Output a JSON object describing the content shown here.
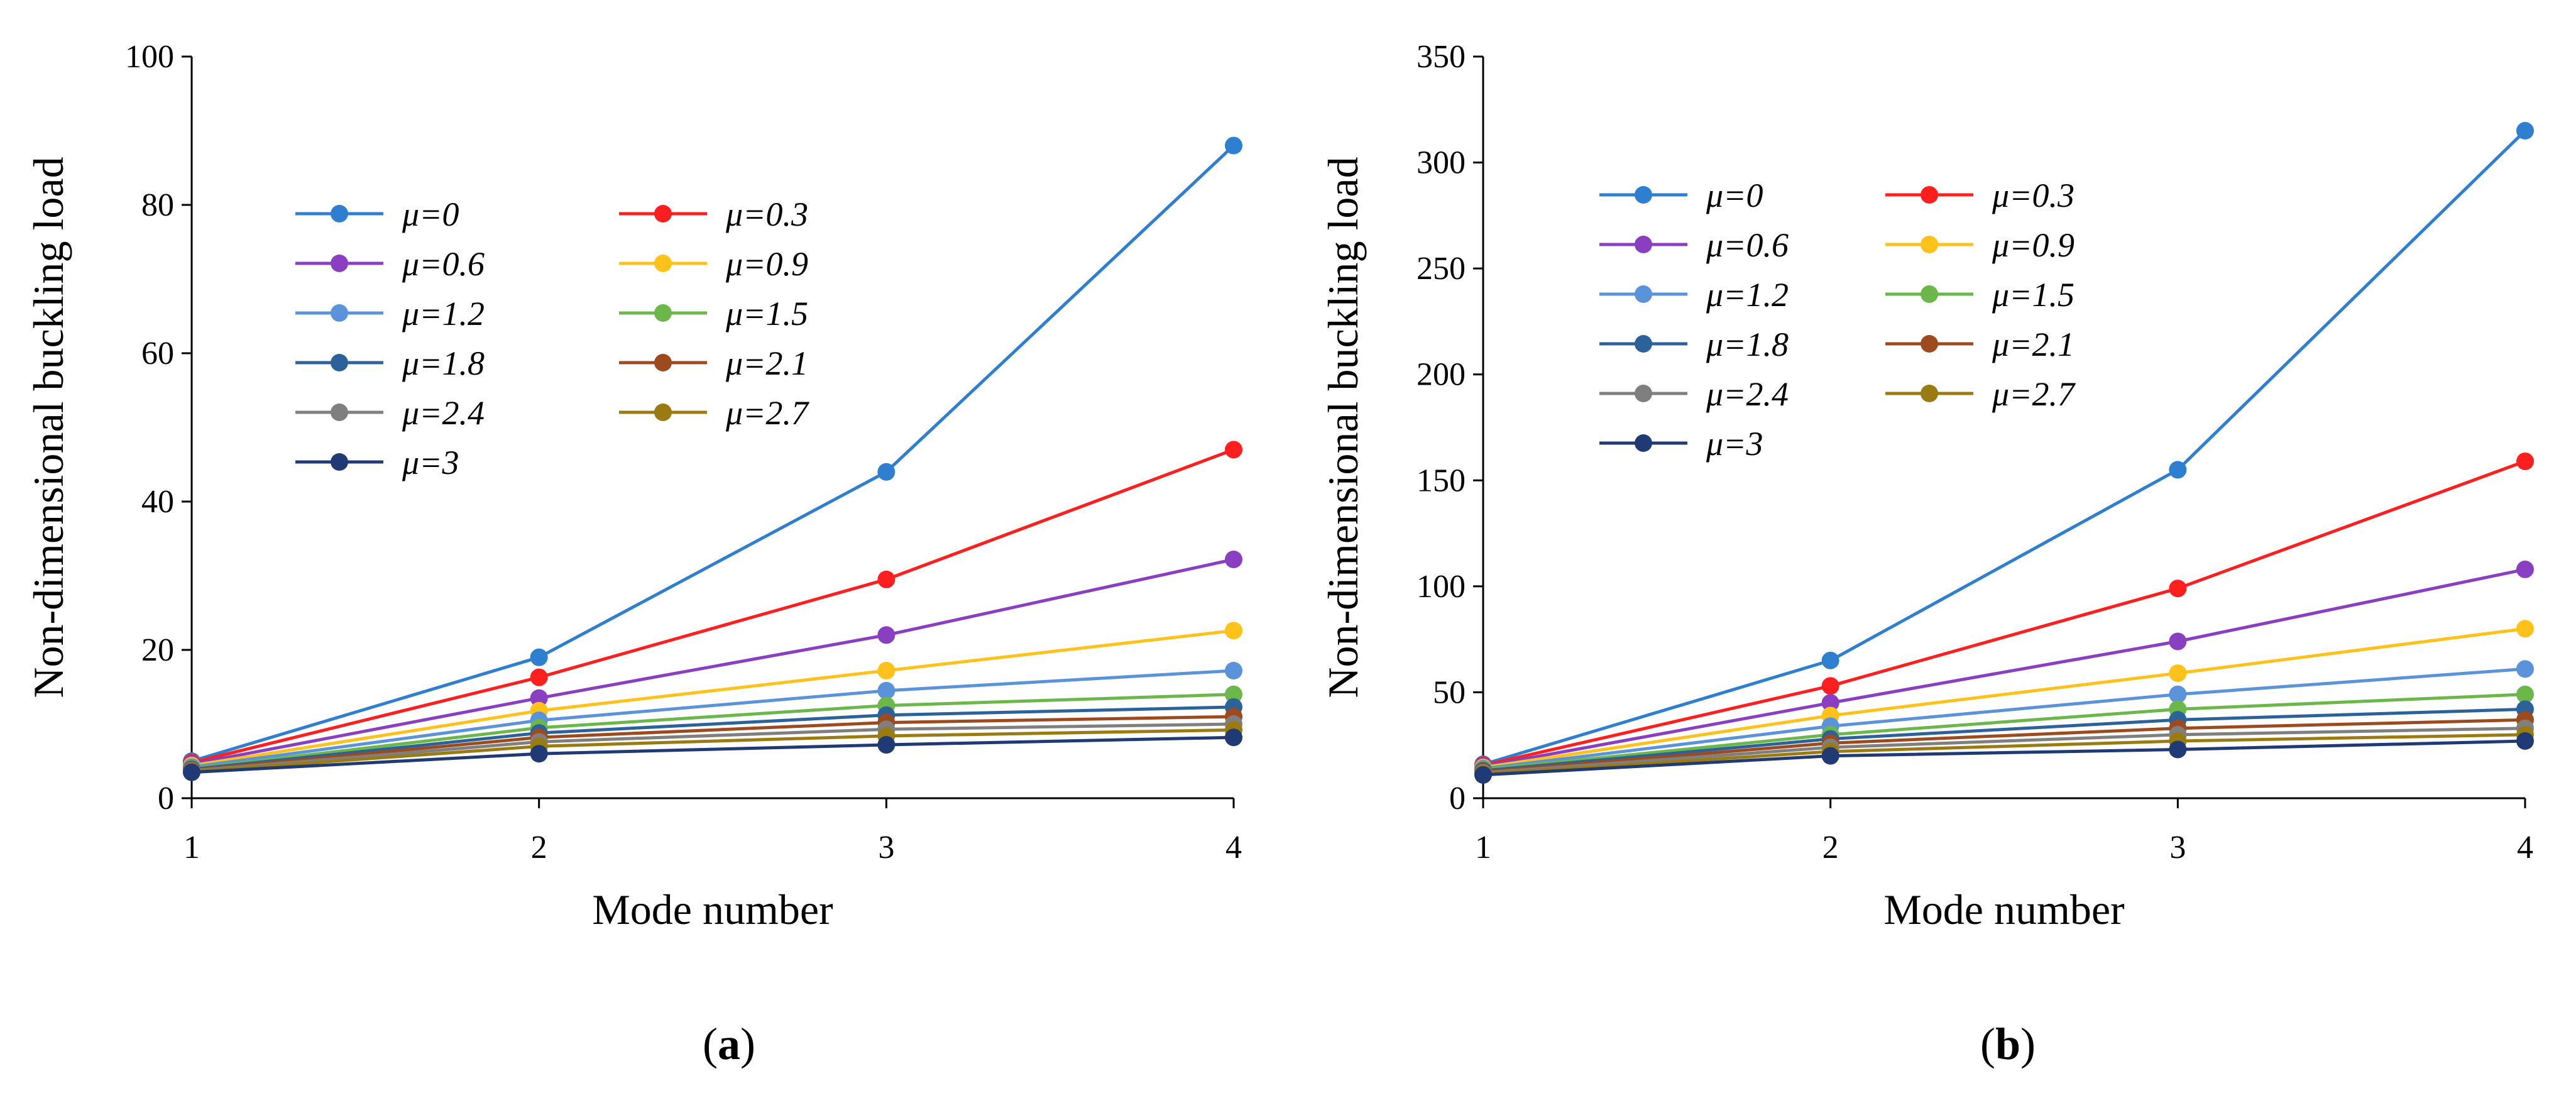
{
  "chart_data": [
    {
      "panel": "a",
      "caption_letter": "a",
      "type": "line",
      "xlabel": "Mode number",
      "ylabel": "Non-dimensional buckling load",
      "x": [
        1,
        2,
        3,
        4
      ],
      "xticks": [
        "1",
        "2",
        "3",
        "4"
      ],
      "ylim": [
        0,
        100
      ],
      "yticks": [
        "0",
        "20",
        "40",
        "60",
        "80",
        "100"
      ],
      "legend_position": "upper-left",
      "series": [
        {
          "name": "μ=0",
          "color": "#2e7fd0",
          "values": [
            5.0,
            19.0,
            44.0,
            88.0
          ]
        },
        {
          "name": "μ=0.3",
          "color": "#ff1f1f",
          "values": [
            4.8,
            16.3,
            29.5,
            47.0
          ]
        },
        {
          "name": "μ=0.6",
          "color": "#8a3fc2",
          "values": [
            4.6,
            13.5,
            22.0,
            32.2
          ]
        },
        {
          "name": "μ=0.9",
          "color": "#ffc21a",
          "values": [
            4.4,
            11.8,
            17.2,
            22.6
          ]
        },
        {
          "name": "μ=1.2",
          "color": "#5b93db",
          "values": [
            4.2,
            10.5,
            14.5,
            17.2
          ]
        },
        {
          "name": "μ=1.5",
          "color": "#6bb74a",
          "values": [
            4.0,
            9.5,
            12.5,
            14.0
          ]
        },
        {
          "name": "μ=1.8",
          "color": "#2b6299",
          "values": [
            3.9,
            8.8,
            11.2,
            12.3
          ]
        },
        {
          "name": "μ=2.1",
          "color": "#9c4a1e",
          "values": [
            3.8,
            8.2,
            10.2,
            11.0
          ]
        },
        {
          "name": "μ=2.4",
          "color": "#7f7f7f",
          "values": [
            3.7,
            7.6,
            9.3,
            10.0
          ]
        },
        {
          "name": "μ=2.7",
          "color": "#9a7b12",
          "values": [
            3.6,
            7.0,
            8.4,
            9.2
          ]
        },
        {
          "name": "μ=3",
          "color": "#1f3a75",
          "values": [
            3.5,
            6.0,
            7.2,
            8.2
          ]
        }
      ]
    },
    {
      "panel": "b",
      "caption_letter": "b",
      "type": "line",
      "xlabel": "Mode number",
      "ylabel": "Non-dimensional buckling load",
      "x": [
        1,
        2,
        3,
        4
      ],
      "xticks": [
        "1",
        "2",
        "3",
        "4"
      ],
      "ylim": [
        0,
        350
      ],
      "yticks": [
        "0",
        "50",
        "100",
        "150",
        "200",
        "250",
        "300",
        "350"
      ],
      "legend_position": "upper-left",
      "series": [
        {
          "name": "μ=0",
          "color": "#2e7fd0",
          "values": [
            16,
            65,
            155,
            315
          ]
        },
        {
          "name": "μ=0.3",
          "color": "#ff1f1f",
          "values": [
            15.5,
            53,
            99,
            159
          ]
        },
        {
          "name": "μ=0.6",
          "color": "#8a3fc2",
          "values": [
            15,
            45,
            74,
            108
          ]
        },
        {
          "name": "μ=0.9",
          "color": "#ffc21a",
          "values": [
            14.5,
            39,
            59,
            80
          ]
        },
        {
          "name": "μ=1.2",
          "color": "#5b93db",
          "values": [
            14,
            34,
            49,
            61
          ]
        },
        {
          "name": "μ=1.5",
          "color": "#6bb74a",
          "values": [
            13.5,
            30,
            42,
            49
          ]
        },
        {
          "name": "μ=1.8",
          "color": "#2b6299",
          "values": [
            13,
            28,
            37,
            42
          ]
        },
        {
          "name": "μ=2.1",
          "color": "#9c4a1e",
          "values": [
            12.5,
            26,
            33,
            37
          ]
        },
        {
          "name": "μ=2.4",
          "color": "#7f7f7f",
          "values": [
            12,
            24,
            30,
            33
          ]
        },
        {
          "name": "μ=2.7",
          "color": "#9a7b12",
          "values": [
            11.5,
            22,
            27,
            30
          ]
        },
        {
          "name": "μ=3",
          "color": "#1f3a75",
          "values": [
            11,
            20,
            23,
            27
          ]
        }
      ]
    }
  ]
}
